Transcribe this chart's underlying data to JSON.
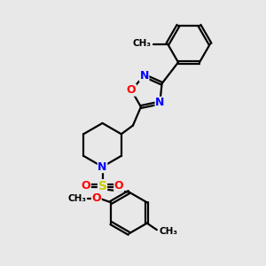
{
  "background_color": "#e8e8e8",
  "bond_color": "#000000",
  "atom_colors": {
    "N": "#0000ff",
    "O": "#ff0000",
    "S": "#cccc00",
    "C": "#000000"
  },
  "figsize": [
    3.0,
    3.0
  ],
  "dpi": 100,
  "xlim": [
    0,
    10
  ],
  "ylim": [
    0,
    10
  ]
}
